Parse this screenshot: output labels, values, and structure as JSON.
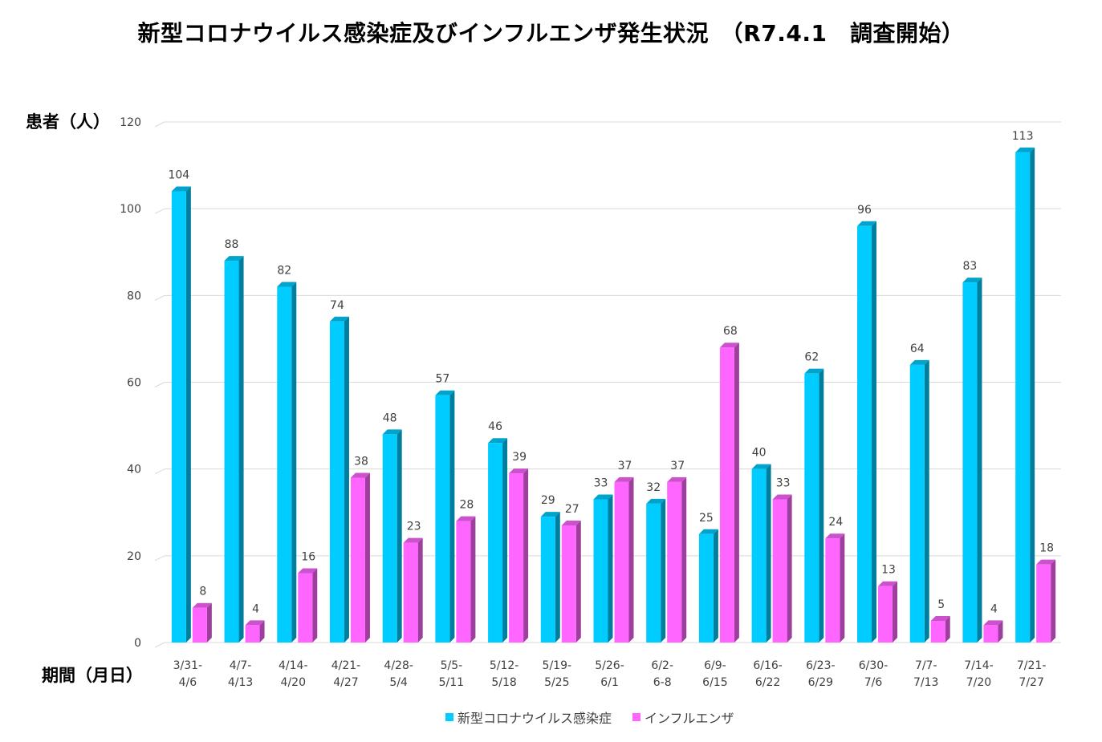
{
  "chart_data": {
    "type": "bar",
    "title": "新型コロナウイルス感染症及びインフルエンザ発生状況　（R7.4.1　調査開始）",
    "ylabel": "患者（人）",
    "xlabel": "期間（月日）",
    "ylim": [
      0,
      120
    ],
    "yticks": [
      0,
      20,
      40,
      60,
      80,
      100,
      120
    ],
    "grid": true,
    "legend_position": "bottom",
    "categories": [
      [
        "3/31-",
        "4/6"
      ],
      [
        "4/7-",
        "4/13"
      ],
      [
        "4/14-",
        "4/20"
      ],
      [
        "4/21-",
        "4/27"
      ],
      [
        "4/28-",
        "5/4"
      ],
      [
        "5/5-",
        "5/11"
      ],
      [
        "5/12-",
        "5/18"
      ],
      [
        "5/19-",
        "5/25"
      ],
      [
        "5/26-",
        "6/1"
      ],
      [
        "6/2-",
        "6-8"
      ],
      [
        "6/9-",
        "6/15"
      ],
      [
        "6/16-",
        "6/22"
      ],
      [
        "6/23-",
        "6/29"
      ],
      [
        "6/30-",
        "7/6"
      ],
      [
        "7/7-",
        "7/13"
      ],
      [
        "7/14-",
        "7/20"
      ],
      [
        "7/21-",
        "7/27"
      ]
    ],
    "series": [
      {
        "name": "新型コロナウイルス感染症",
        "color": "#00CCFF",
        "values": [
          104,
          88,
          82,
          74,
          48,
          57,
          46,
          29,
          33,
          32,
          25,
          40,
          62,
          96,
          64,
          83,
          113
        ]
      },
      {
        "name": "インフルエンザ",
        "color": "#FF66FF",
        "values": [
          8,
          4,
          16,
          38,
          23,
          28,
          39,
          27,
          37,
          37,
          68,
          33,
          24,
          13,
          5,
          4,
          18
        ]
      }
    ]
  }
}
